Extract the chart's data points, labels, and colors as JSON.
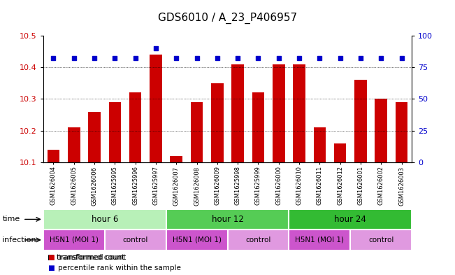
{
  "title": "GDS6010 / A_23_P406957",
  "samples": [
    "GSM1626004",
    "GSM1626005",
    "GSM1626006",
    "GSM1625995",
    "GSM1625996",
    "GSM1625997",
    "GSM1626007",
    "GSM1626008",
    "GSM1626009",
    "GSM1625998",
    "GSM1625999",
    "GSM1626000",
    "GSM1626010",
    "GSM1626011",
    "GSM1626012",
    "GSM1626001",
    "GSM1626002",
    "GSM1626003"
  ],
  "bar_values": [
    10.14,
    10.21,
    10.26,
    10.29,
    10.32,
    10.44,
    10.12,
    10.29,
    10.35,
    10.41,
    10.32,
    10.41,
    10.41,
    10.21,
    10.16,
    10.36,
    10.3,
    10.29
  ],
  "dot_values": [
    10.43,
    10.43,
    10.43,
    10.43,
    10.43,
    10.46,
    10.43,
    10.43,
    10.43,
    10.43,
    10.43,
    10.43,
    10.43,
    10.43,
    10.43,
    10.43,
    10.43,
    10.43
  ],
  "bar_color": "#cc0000",
  "dot_color": "#0000cc",
  "ylim_left": [
    10.1,
    10.5
  ],
  "ylim_right": [
    0,
    100
  ],
  "yticks_left": [
    10.1,
    10.2,
    10.3,
    10.4,
    10.5
  ],
  "yticks_right": [
    0,
    25,
    50,
    75,
    100
  ],
  "grid_ticks": [
    10.2,
    10.3,
    10.4
  ],
  "time_groups": [
    {
      "label": "hour 6",
      "start": 0,
      "end": 6,
      "color": "#b8f0b8"
    },
    {
      "label": "hour 12",
      "start": 6,
      "end": 12,
      "color": "#55cc55"
    },
    {
      "label": "hour 24",
      "start": 12,
      "end": 18,
      "color": "#33bb33"
    }
  ],
  "infection_groups": [
    {
      "label": "H5N1 (MOI 1)",
      "start": 0,
      "end": 3,
      "color": "#cc55cc"
    },
    {
      "label": "control",
      "start": 3,
      "end": 6,
      "color": "#e099e0"
    },
    {
      "label": "H5N1 (MOI 1)",
      "start": 6,
      "end": 9,
      "color": "#cc55cc"
    },
    {
      "label": "control",
      "start": 9,
      "end": 12,
      "color": "#e099e0"
    },
    {
      "label": "H5N1 (MOI 1)",
      "start": 12,
      "end": 15,
      "color": "#cc55cc"
    },
    {
      "label": "control",
      "start": 15,
      "end": 18,
      "color": "#e099e0"
    }
  ],
  "time_label": "time",
  "infection_label": "infection",
  "legend_bar": "transformed count",
  "legend_dot": "percentile rank within the sample",
  "bar_width": 0.6,
  "background_color": "#ffffff",
  "bar_color_left": "#cc0000",
  "bar_color_right": "#0000cc",
  "title_fontsize": 11,
  "tick_fontsize": 8,
  "sample_fontsize": 6
}
